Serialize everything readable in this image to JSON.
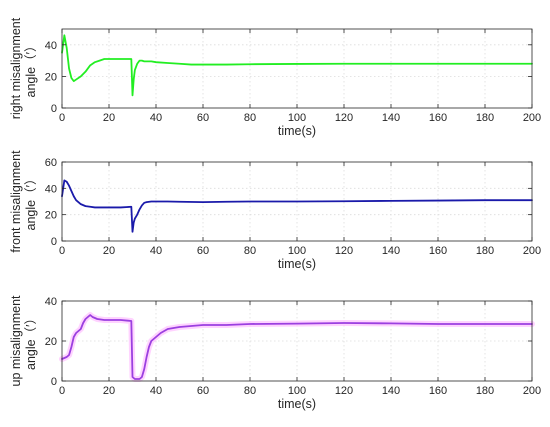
{
  "chart_data": [
    {
      "type": "line",
      "ylabel_line1": "right misalignment",
      "ylabel_line2": "angle（′）",
      "xlabel": "time(s)",
      "xlim": [
        0,
        200
      ],
      "ylim": [
        0,
        50
      ],
      "xticks": [
        0,
        20,
        40,
        60,
        80,
        100,
        120,
        140,
        160,
        180,
        200
      ],
      "yticks": [
        0,
        20,
        40
      ],
      "grid": true,
      "series": [
        {
          "color": "#22ee22",
          "x": [
            0,
            1,
            2,
            3,
            4,
            5,
            6,
            8,
            10,
            12,
            14,
            16,
            18,
            20,
            22,
            25,
            28,
            29.5,
            30,
            30.5,
            31,
            32,
            33,
            34,
            35,
            36,
            38,
            40,
            45,
            50,
            55,
            60,
            70,
            80,
            90,
            100,
            120,
            140,
            160,
            180,
            200
          ],
          "y": [
            35,
            46,
            38,
            25,
            19,
            17,
            18,
            20,
            23,
            27,
            29,
            30,
            31,
            31,
            31,
            31,
            31,
            31,
            8,
            18,
            24,
            28,
            30,
            30,
            29.5,
            29.5,
            29.5,
            29,
            28.5,
            28,
            27.5,
            27.5,
            27.5,
            27.7,
            27.8,
            27.9,
            28,
            28,
            28,
            28,
            28
          ]
        }
      ]
    },
    {
      "type": "line",
      "ylabel_line1": "front misalignment",
      "ylabel_line2": "angle（′）",
      "xlabel": "time(s)",
      "xlim": [
        0,
        200
      ],
      "ylim": [
        0,
        60
      ],
      "xticks": [
        0,
        20,
        40,
        60,
        80,
        100,
        120,
        140,
        160,
        180,
        200
      ],
      "yticks": [
        0,
        20,
        40,
        60
      ],
      "grid": true,
      "series": [
        {
          "color": "#1a1aaa",
          "x": [
            0,
            1,
            2,
            3,
            4,
            5,
            6,
            8,
            10,
            12,
            14,
            16,
            20,
            25,
            29.5,
            30,
            30.5,
            31,
            32,
            33,
            34,
            35,
            36,
            38,
            40,
            45,
            50,
            60,
            70,
            80,
            100,
            120,
            140,
            160,
            180,
            200
          ],
          "y": [
            34,
            46,
            45,
            42,
            38,
            34,
            31,
            28,
            26.5,
            26,
            25.5,
            25.5,
            25.5,
            25.5,
            26,
            7,
            14,
            17,
            20,
            24,
            27,
            29,
            29.5,
            30,
            30,
            30,
            29.8,
            29.5,
            29.8,
            30,
            30,
            30.2,
            30.5,
            30.7,
            31,
            31
          ]
        }
      ]
    },
    {
      "type": "line",
      "ylabel_line1": "up misalignment",
      "ylabel_line2": "angle（′）",
      "xlabel": "time(s)",
      "xlim": [
        0,
        200
      ],
      "ylim": [
        0,
        40
      ],
      "xticks": [
        0,
        20,
        40,
        60,
        80,
        100,
        120,
        140,
        160,
        180,
        200
      ],
      "yticks": [
        0,
        20,
        40
      ],
      "grid": true,
      "series": [
        {
          "color": "#9b3fe0",
          "band_color": "#ffc4ff",
          "x": [
            0,
            2,
            3,
            4,
            5,
            6,
            7,
            8,
            9,
            10,
            11,
            12,
            13,
            14,
            15,
            18,
            20,
            25,
            29.5,
            30,
            31,
            33,
            34,
            35,
            36,
            37,
            38,
            40,
            42,
            45,
            50,
            55,
            60,
            65,
            70,
            80,
            100,
            120,
            140,
            160,
            180,
            200
          ],
          "y": [
            11,
            12,
            13,
            17,
            22,
            24,
            25,
            26,
            29,
            31,
            32,
            33,
            32,
            31.5,
            31,
            30.5,
            30.5,
            30.5,
            30,
            2,
            1,
            1,
            2,
            6,
            12,
            17,
            20,
            22,
            24,
            26,
            27,
            27.5,
            28,
            28,
            28,
            28.5,
            28.7,
            29,
            28.8,
            28.5,
            28.5,
            28.5
          ]
        }
      ]
    }
  ]
}
